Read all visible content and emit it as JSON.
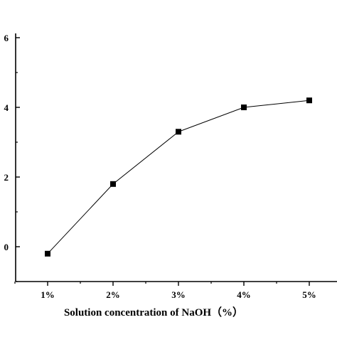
{
  "chart_data": {
    "type": "line",
    "title": "",
    "xlabel": "Solution concentration of NaOH（%）",
    "ylabel": "",
    "categories": [
      "1%",
      "2%",
      "3%",
      "4%",
      "5%"
    ],
    "values": [
      -0.2,
      1.8,
      3.3,
      4.0,
      4.2
    ],
    "ylim": [
      -1,
      6
    ],
    "yticks": [
      0,
      2,
      4,
      6
    ],
    "grid": false,
    "legend": "none",
    "marker": "square",
    "line_color": "#000000"
  }
}
